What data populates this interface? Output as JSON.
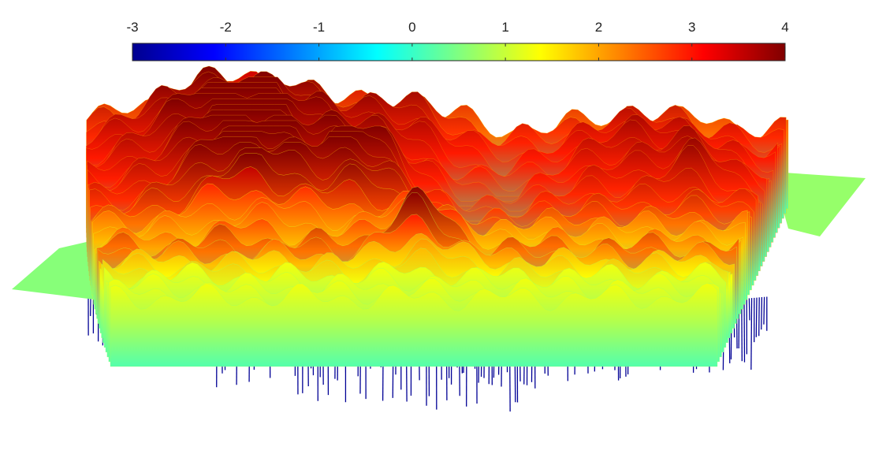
{
  "chart_data": {
    "type": "surface",
    "title": "",
    "xlabel": "",
    "ylabel": "",
    "zlabel": "",
    "grid": false,
    "axes_visible": false,
    "colormap": "jet",
    "colorbar": {
      "placement": "top",
      "orientation": "horizontal",
      "range": [
        -3,
        4
      ],
      "ticks": [
        -3,
        -2,
        -1,
        0,
        1,
        2,
        3,
        4
      ],
      "tick_labels": [
        "-3",
        "-2",
        "-1",
        "0",
        "1",
        "2",
        "3",
        "4"
      ]
    },
    "z_range": [
      -3,
      4
    ],
    "surface": {
      "base_level": 0.4,
      "peaks": [
        {
          "region": "left-back",
          "z": 4.0
        },
        {
          "region": "left-middle",
          "z": 3.8
        },
        {
          "region": "center-left",
          "z": 3.7
        },
        {
          "region": "center-front",
          "z": 3.6
        },
        {
          "region": "center-back",
          "z": 2.6
        },
        {
          "region": "right-back",
          "z": 2.6
        },
        {
          "region": "right-edge",
          "z": 3.3
        }
      ],
      "troughs": [
        {
          "region": "center-right",
          "z": -1.2
        },
        {
          "region": "front-underside",
          "z": -3.0
        }
      ]
    },
    "colors": {
      "jet": [
        "#00008f",
        "#0000ff",
        "#0080ff",
        "#00ffff",
        "#80ff80",
        "#ffff00",
        "#ff8000",
        "#ff0000",
        "#800000"
      ],
      "tick_mark": "#333333",
      "colorbar_border": "#262626"
    }
  }
}
